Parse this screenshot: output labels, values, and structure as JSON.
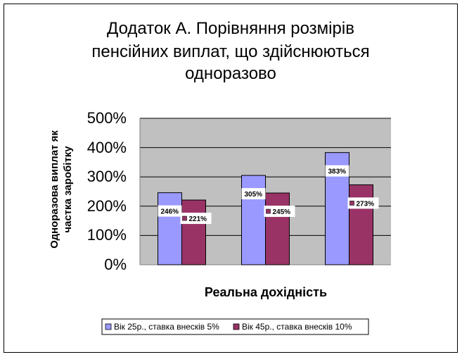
{
  "chart_data": {
    "type": "bar",
    "title_lines": [
      "Додаток А. Порівняння розмірів",
      "пенсійних виплат, що здійснюються",
      "одноразово"
    ],
    "ylabel_lines": [
      "Одноразова виплат як",
      "частка заробітку"
    ],
    "xlabel": "Реальна дохідність",
    "yticks": [
      "0%",
      "100%",
      "200%",
      "300%",
      "400%",
      "500%"
    ],
    "ylim": [
      0,
      500
    ],
    "grid": true,
    "legend_position": "bottom",
    "series": [
      {
        "name": "Вік 25р., ставка внесків 5%",
        "values": [
          246,
          305,
          383
        ],
        "labels": [
          "246%",
          "305%",
          "383%"
        ],
        "color": "#9999ff"
      },
      {
        "name": "Вік 45р., ставка внесків 10%",
        "values": [
          221,
          245,
          273
        ],
        "labels": [
          "221%",
          "245%",
          "273%"
        ],
        "color": "#993366"
      }
    ],
    "plot_background": "#c0c0c0"
  }
}
